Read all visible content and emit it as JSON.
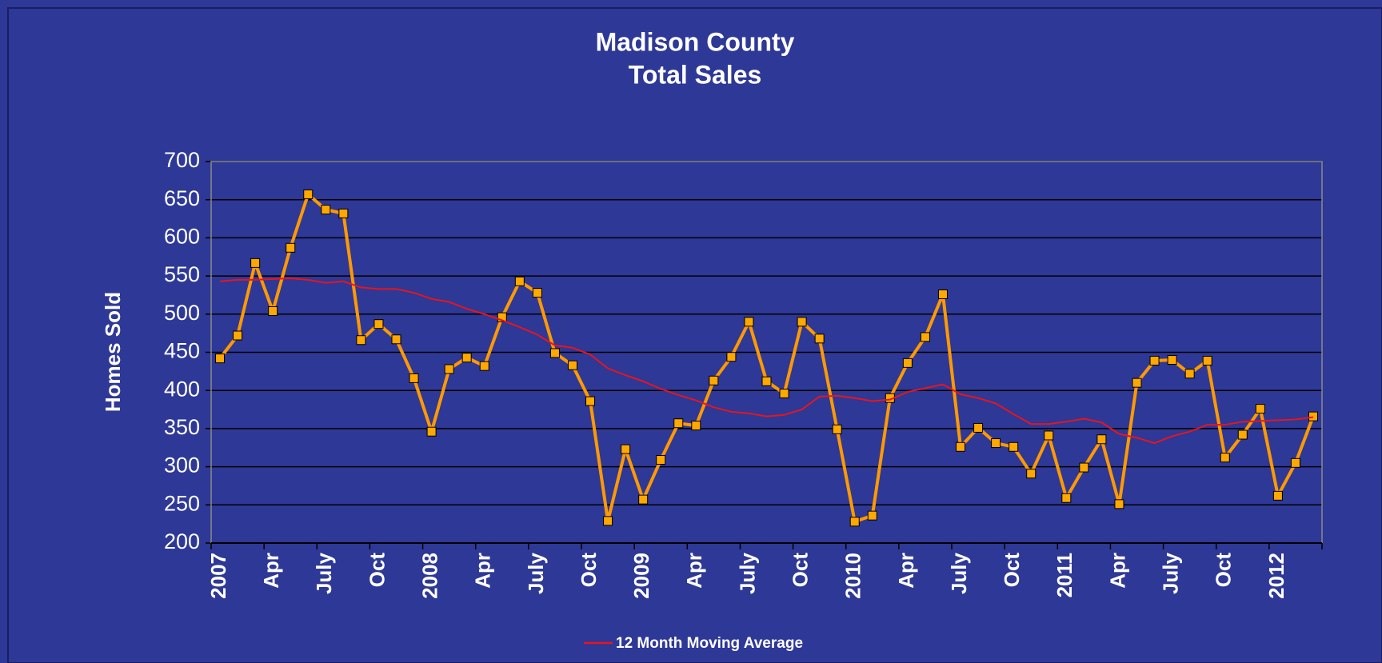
{
  "chart_data": {
    "type": "line",
    "title": "Madison County",
    "subtitle": "Total Sales",
    "y_label": "Homes Sold",
    "categories": [
      "2007",
      null,
      null,
      "Apr",
      null,
      null,
      "July",
      null,
      null,
      "Oct",
      null,
      null,
      "2008",
      null,
      null,
      "Apr",
      null,
      null,
      "July",
      null,
      null,
      "Oct",
      null,
      null,
      "2009",
      null,
      null,
      "Apr",
      null,
      null,
      "July",
      null,
      null,
      "Oct",
      null,
      null,
      "2010",
      null,
      null,
      "Apr",
      null,
      null,
      "July",
      null,
      null,
      "Oct",
      null,
      null,
      "2011",
      null,
      null,
      "Apr",
      null,
      null,
      "July",
      null,
      null,
      "Oct",
      null,
      null,
      "2012",
      null,
      null
    ],
    "series": [
      {
        "color": "#ff9900",
        "marker_color": "#ffa800",
        "values": [
          442,
          472,
          567,
          504,
          587,
          657,
          637,
          632,
          466,
          487,
          467,
          416,
          346,
          428,
          443,
          432,
          496,
          543,
          528,
          449,
          433,
          386,
          229,
          323,
          257,
          309,
          357,
          354,
          413,
          444,
          490,
          412,
          396,
          490,
          468,
          349,
          228,
          236,
          390,
          436,
          470,
          526,
          326,
          351,
          331,
          326,
          291,
          341,
          259,
          299,
          336,
          251,
          410,
          439,
          440,
          422,
          439,
          312,
          342,
          376,
          262,
          305,
          366
        ]
      },
      {
        "name": "12 Month Moving Average",
        "color": "#e8141e",
        "values": [
          543,
          545,
          545,
          546,
          547,
          545,
          541,
          543,
          535,
          533,
          533,
          528,
          520,
          516,
          507,
          500,
          492,
          483,
          473,
          459,
          456,
          447,
          429,
          420,
          412,
          402,
          394,
          387,
          378,
          372,
          370,
          366,
          368,
          375,
          392,
          393,
          390,
          386,
          388,
          398,
          403,
          408,
          395,
          390,
          383,
          369,
          356,
          356,
          359,
          363,
          358,
          343,
          338,
          331,
          340,
          346,
          355,
          355,
          359,
          360,
          361,
          362,
          365
        ]
      }
    ],
    "ylim": [
      200,
      700
    ],
    "yticks": [
      200,
      250,
      300,
      350,
      400,
      450,
      500,
      550,
      600,
      650,
      700
    ],
    "grid": true,
    "legend": "bottom",
    "background": "#2e3896"
  }
}
